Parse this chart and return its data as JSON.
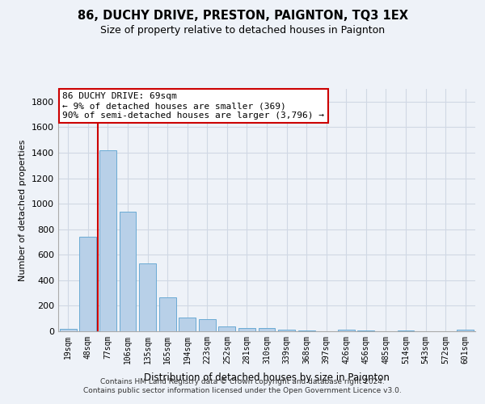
{
  "title": "86, DUCHY DRIVE, PRESTON, PAIGNTON, TQ3 1EX",
  "subtitle": "Size of property relative to detached houses in Paignton",
  "xlabel": "Distribution of detached houses by size in Paignton",
  "ylabel": "Number of detached properties",
  "bar_labels": [
    "19sqm",
    "48sqm",
    "77sqm",
    "106sqm",
    "135sqm",
    "165sqm",
    "194sqm",
    "223sqm",
    "252sqm",
    "281sqm",
    "310sqm",
    "339sqm",
    "368sqm",
    "397sqm",
    "426sqm",
    "456sqm",
    "485sqm",
    "514sqm",
    "543sqm",
    "572sqm",
    "601sqm"
  ],
  "bar_values": [
    22,
    740,
    1420,
    935,
    530,
    265,
    105,
    95,
    40,
    27,
    25,
    10,
    5,
    0,
    15,
    5,
    0,
    5,
    0,
    0,
    12
  ],
  "bar_color": "#b8d0e8",
  "bar_edge_color": "#6aaad4",
  "grid_color": "#d0d8e4",
  "vline_x": 1.5,
  "vline_color": "#cc0000",
  "annotation_text": "86 DUCHY DRIVE: 69sqm\n← 9% of detached houses are smaller (369)\n90% of semi-detached houses are larger (3,796) →",
  "annotation_box_color": "#ffffff",
  "annotation_box_edge": "#cc0000",
  "ylim": [
    0,
    1900
  ],
  "yticks": [
    0,
    200,
    400,
    600,
    800,
    1000,
    1200,
    1400,
    1600,
    1800
  ],
  "footer": "Contains HM Land Registry data © Crown copyright and database right 2024.\nContains public sector information licensed under the Open Government Licence v3.0.",
  "bg_color": "#eef2f8"
}
